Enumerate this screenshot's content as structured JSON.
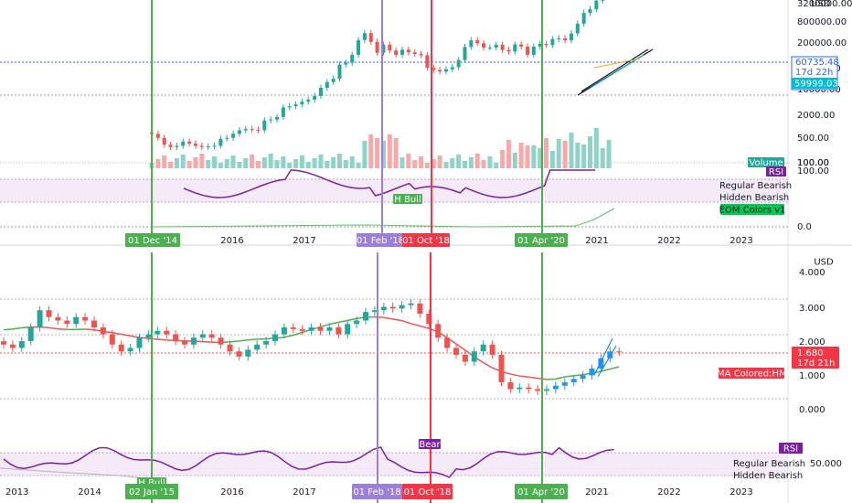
{
  "chart_data": [
    {
      "type": "candlestick",
      "title": "",
      "scale": "log",
      "y_ticks": [
        "3200000.00",
        "800000.00",
        "200000.00",
        "50000.00",
        "10000.00",
        "2000.00",
        "500.00",
        "100.00"
      ],
      "top_tick_fragment": "USD",
      "last_price": "60735.48",
      "countdown": "17d 22h",
      "secondary_price": "59999.03",
      "x_labels": [
        "2016",
        "2017",
        "2021",
        "2022",
        "2023"
      ],
      "vertical_markers": [
        {
          "date": "01 Dec '14",
          "color": "#4caf50"
        },
        {
          "date": "01 Feb '18",
          "color": "#9c7fd6"
        },
        {
          "date": "01 Oct '18",
          "color": "#f23645"
        },
        {
          "date": "01 Apr '20",
          "color": "#4caf50"
        }
      ],
      "monthly_close": [
        370,
        320,
        250,
        230,
        240,
        280,
        260,
        240,
        230,
        235,
        240,
        310,
        320,
        370,
        420,
        440,
        430,
        420,
        600,
        620,
        680,
        960,
        1000,
        1070,
        1180,
        1270,
        1450,
        1950,
        2400,
        2700,
        4500,
        4800,
        6400,
        10900,
        14000,
        10200,
        6900,
        9200,
        7500,
        6400,
        7700,
        7000,
        6600,
        6300,
        4000,
        3700,
        3500,
        3800,
        4100,
        5300,
        8500,
        10800,
        9700,
        8300,
        8300,
        9200,
        7600,
        7200,
        9300,
        8600,
        6400,
        8600,
        9500,
        9100,
        11300,
        11600,
        10800,
        13800,
        19700,
        29000,
        33100,
        45200,
        58800,
        60735
      ],
      "volume": {
        "label": "Volume",
        "value": "100.00"
      },
      "rsi": {
        "label": "RSI",
        "value": "100.00",
        "marker": "H Bull",
        "legend": [
          "Regular Bearish",
          "Hidden Bearish"
        ]
      },
      "eom": {
        "label": "EOM Colors v1",
        "value": "0.0"
      }
    },
    {
      "type": "candlestick",
      "title": "",
      "scale": "linear",
      "y_ticks": [
        "4.000",
        "3.000",
        "2.000",
        "1.000",
        "0.000"
      ],
      "currency": "USD",
      "last_value": "1.680",
      "countdown": "17d 21h",
      "indicator_label": "HMA Colored:HMA",
      "x_labels": [
        "2013",
        "2014",
        "2016",
        "2017",
        "2021",
        "2022",
        "2023"
      ],
      "vertical_markers": [
        {
          "date": "02 Jan '15",
          "color": "#4caf50"
        },
        {
          "date": "01 Feb '18",
          "color": "#9c7fd6"
        },
        {
          "date": "01 Oct '18",
          "color": "#f23645"
        },
        {
          "date": "01 Apr '20",
          "color": "#4caf50"
        }
      ],
      "monthly_close": [
        1.9,
        1.8,
        2.0,
        2.4,
        2.9,
        2.7,
        2.6,
        2.5,
        2.7,
        2.6,
        2.4,
        2.2,
        1.9,
        1.7,
        1.8,
        2.1,
        2.2,
        2.3,
        2.2,
        2.0,
        1.9,
        2.1,
        2.2,
        2.1,
        1.9,
        1.7,
        1.55,
        1.75,
        1.9,
        2.0,
        2.2,
        2.4,
        2.35,
        2.3,
        2.4,
        2.3,
        2.4,
        2.2,
        2.5,
        2.6,
        2.85,
        2.9,
        3.0,
        2.95,
        3.05,
        3.1,
        2.8,
        2.5,
        2.1,
        1.8,
        1.6,
        1.4,
        1.7,
        1.9,
        1.6,
        0.8,
        0.6,
        0.65,
        0.6,
        0.55,
        0.6,
        0.7,
        0.8,
        0.9,
        1.0,
        1.2,
        1.5,
        1.7,
        1.68
      ],
      "rsi": {
        "label": "RSI",
        "value": "50.000",
        "marker_bear": "Bear",
        "marker_bull": "H Bull",
        "legend": [
          "Regular Bearish",
          "Hidden Bearish"
        ]
      }
    }
  ]
}
